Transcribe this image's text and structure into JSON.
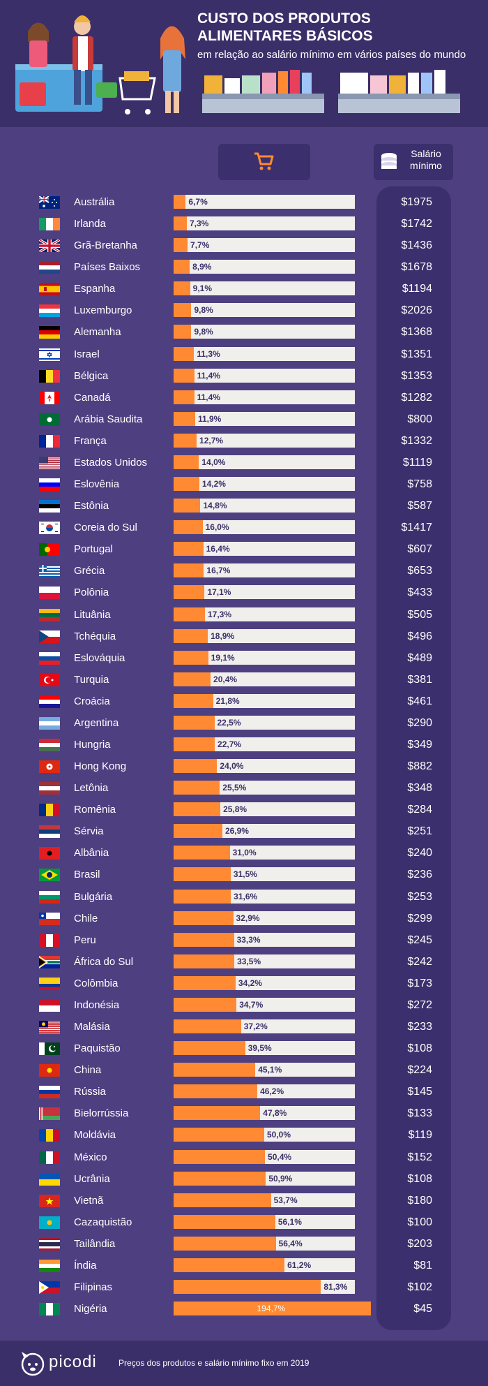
{
  "header": {
    "title": "CUSTO DOS PRODUTOS ALIMENTARES BÁSICOS",
    "subtitle": "em relação ao salário mínimo em vários países do mundo"
  },
  "salary_column_label": "Salário mínimo",
  "icons": {
    "cart": "cart-icon",
    "coins": "coins-icon",
    "logo": "dog-logo-icon"
  },
  "colors": {
    "bar": "#ff8a33",
    "bar_background": "#f1efec",
    "background": "#4e3f80",
    "header": "#3b2f69"
  },
  "chart_data": {
    "type": "bar",
    "orientation": "horizontal",
    "categories": [
      "Austrália",
      "Irlanda",
      "Grã-Bretanha",
      "Países Baixos",
      "Espanha",
      "Luxemburgo",
      "Alemanha",
      "Israel",
      "Bélgica",
      "Canadá",
      "Arábia Saudita",
      "França",
      "Estados Unidos",
      "Eslovênia",
      "Estônia",
      "Coreia do Sul",
      "Portugal",
      "Grécia",
      "Polônia",
      "Lituânia",
      "Tchéquia",
      "Eslováquia",
      "Turquia",
      "Croácia",
      "Argentina",
      "Hungria",
      "Hong Kong",
      "Letônia",
      "Romênia",
      "Sérvia",
      "Albânia",
      "Brasil",
      "Bulgária",
      "Chile",
      "Peru",
      "África do Sul",
      "Colômbia",
      "Indonésia",
      "Malásia",
      "Paquistão",
      "China",
      "Rússia",
      "Bielorrússia",
      "Moldávia",
      "México",
      "Ucrânia",
      "Vietnã",
      "Cazaquistão",
      "Tailândia",
      "Índia",
      "Filipinas",
      "Nigéria"
    ],
    "values": [
      6.7,
      7.3,
      7.7,
      8.9,
      9.1,
      9.8,
      9.8,
      11.3,
      11.4,
      11.4,
      11.9,
      12.7,
      14.0,
      14.2,
      14.8,
      16.0,
      16.4,
      16.7,
      17.1,
      17.3,
      18.9,
      19.1,
      20.4,
      21.8,
      22.5,
      22.7,
      24.0,
      25.5,
      25.8,
      26.9,
      31.0,
      31.5,
      31.6,
      32.9,
      33.3,
      33.5,
      34.2,
      34.7,
      37.2,
      39.5,
      45.1,
      46.2,
      47.8,
      50.0,
      50.4,
      50.9,
      53.7,
      56.1,
      56.4,
      61.2,
      81.3,
      194.7
    ],
    "value_labels": [
      "6,7%",
      "7,3%",
      "7,7%",
      "8,9%",
      "9,1%",
      "9,8%",
      "9,8%",
      "11,3%",
      "11,4%",
      "11,4%",
      "11,9%",
      "12,7%",
      "14,0%",
      "14,2%",
      "14,8%",
      "16,0%",
      "16,4%",
      "16,7%",
      "17,1%",
      "17,3%",
      "18,9%",
      "19,1%",
      "20,4%",
      "21,8%",
      "22,5%",
      "22,7%",
      "24,0%",
      "25,5%",
      "25,8%",
      "26,9%",
      "31,0%",
      "31,5%",
      "31,6%",
      "32,9%",
      "33,3%",
      "33,5%",
      "34,2%",
      "34,7%",
      "37,2%",
      "39,5%",
      "45,1%",
      "46,2%",
      "47,8%",
      "50,0%",
      "50,4%",
      "50,9%",
      "53,7%",
      "56,1%",
      "56,4%",
      "61,2%",
      "81,3%",
      "194,7%"
    ],
    "minimum_wage": [
      "$1975",
      "$1742",
      "$1436",
      "$1678",
      "$1194",
      "$2026",
      "$1368",
      "$1351",
      "$1353",
      "$1282",
      "$800",
      "$1332",
      "$1119",
      "$758",
      "$587",
      "$1417",
      "$607",
      "$653",
      "$433",
      "$505",
      "$496",
      "$489",
      "$381",
      "$461",
      "$290",
      "$349",
      "$882",
      "$348",
      "$284",
      "$251",
      "$240",
      "$236",
      "$253",
      "$299",
      "$245",
      "$242",
      "$173",
      "$272",
      "$233",
      "$108",
      "$224",
      "$145",
      "$133",
      "$119",
      "$152",
      "$108",
      "$180",
      "$100",
      "$203",
      "$81",
      "$102",
      "$45"
    ],
    "xlim": [
      0,
      100
    ],
    "grid": false
  },
  "flags": [
    {
      "type": "au",
      "c": [
        "#00247d",
        "#ffffff",
        "#cf142b"
      ]
    },
    {
      "type": "v",
      "c": [
        "#169b62",
        "#ffffff",
        "#ff883e"
      ]
    },
    {
      "type": "gb",
      "c": [
        "#012169",
        "#ffffff",
        "#c8102e"
      ]
    },
    {
      "type": "h",
      "c": [
        "#ae1c28",
        "#ffffff",
        "#21468b"
      ]
    },
    {
      "type": "es",
      "c": [
        "#c60b1e",
        "#ffc400",
        "#c60b1e"
      ]
    },
    {
      "type": "h",
      "c": [
        "#ef3340",
        "#ffffff",
        "#00a3e0"
      ]
    },
    {
      "type": "h",
      "c": [
        "#000000",
        "#dd0000",
        "#ffce00"
      ]
    },
    {
      "type": "il",
      "c": [
        "#ffffff",
        "#0038b8",
        "#ffffff"
      ]
    },
    {
      "type": "v",
      "c": [
        "#000000",
        "#fdda24",
        "#ef3340"
      ]
    },
    {
      "type": "ca",
      "c": [
        "#ff0000",
        "#ffffff",
        "#ff0000"
      ]
    },
    {
      "type": "s",
      "c": [
        "#006c35",
        "#ffffff",
        "#006c35"
      ]
    },
    {
      "type": "v",
      "c": [
        "#002395",
        "#ffffff",
        "#ed2939"
      ]
    },
    {
      "type": "us",
      "c": [
        "#b22234",
        "#ffffff",
        "#3c3b6e"
      ]
    },
    {
      "type": "h",
      "c": [
        "#ffffff",
        "#0000ff",
        "#ff0000"
      ]
    },
    {
      "type": "h",
      "c": [
        "#0072ce",
        "#000000",
        "#ffffff"
      ]
    },
    {
      "type": "kr",
      "c": [
        "#ffffff",
        "#cd2e3a",
        "#0047a0"
      ]
    },
    {
      "type": "pt",
      "c": [
        "#006600",
        "#ff0000",
        "#ffcc00"
      ]
    },
    {
      "type": "gr",
      "c": [
        "#0d5eaf",
        "#ffffff",
        "#0d5eaf"
      ]
    },
    {
      "type": "h2",
      "c": [
        "#ffffff",
        "#dc143c"
      ]
    },
    {
      "type": "h",
      "c": [
        "#fdb913",
        "#006a44",
        "#c1272d"
      ]
    },
    {
      "type": "cz",
      "c": [
        "#ffffff",
        "#d7141a",
        "#11457e"
      ]
    },
    {
      "type": "h",
      "c": [
        "#ffffff",
        "#0b4ea2",
        "#ee1c25"
      ]
    },
    {
      "type": "tr",
      "c": [
        "#e30a17",
        "#ffffff",
        "#e30a17"
      ]
    },
    {
      "type": "h",
      "c": [
        "#ff0000",
        "#ffffff",
        "#171796"
      ]
    },
    {
      "type": "h",
      "c": [
        "#74acdf",
        "#ffffff",
        "#74acdf"
      ]
    },
    {
      "type": "h",
      "c": [
        "#ce2939",
        "#ffffff",
        "#477050"
      ]
    },
    {
      "type": "hk",
      "c": [
        "#de2910",
        "#ffffff",
        "#de2910"
      ]
    },
    {
      "type": "h",
      "c": [
        "#9e3039",
        "#ffffff",
        "#9e3039"
      ]
    },
    {
      "type": "v",
      "c": [
        "#002b7f",
        "#fcd116",
        "#ce1126"
      ]
    },
    {
      "type": "h",
      "c": [
        "#c6363c",
        "#0c4076",
        "#ffffff"
      ]
    },
    {
      "type": "s",
      "c": [
        "#e41e20",
        "#000000",
        "#e41e20"
      ]
    },
    {
      "type": "br",
      "c": [
        "#009c3b",
        "#ffdf00",
        "#002776"
      ]
    },
    {
      "type": "h",
      "c": [
        "#ffffff",
        "#00966e",
        "#d62612"
      ]
    },
    {
      "type": "cl",
      "c": [
        "#ffffff",
        "#d52b1e",
        "#0039a6"
      ]
    },
    {
      "type": "v",
      "c": [
        "#d91023",
        "#ffffff",
        "#d91023"
      ]
    },
    {
      "type": "za",
      "c": [
        "#007a4d",
        "#ffb612",
        "#de3831"
      ]
    },
    {
      "type": "co",
      "c": [
        "#fcd116",
        "#003893",
        "#ce1126"
      ]
    },
    {
      "type": "h2",
      "c": [
        "#ce1126",
        "#ffffff"
      ]
    },
    {
      "type": "us",
      "c": [
        "#cc0001",
        "#ffffff",
        "#010066"
      ]
    },
    {
      "type": "pk",
      "c": [
        "#01411c",
        "#ffffff",
        "#01411c"
      ]
    },
    {
      "type": "s",
      "c": [
        "#de2910",
        "#ffde00",
        "#de2910"
      ]
    },
    {
      "type": "h",
      "c": [
        "#ffffff",
        "#0039a6",
        "#d52b1e"
      ]
    },
    {
      "type": "by",
      "c": [
        "#c8313e",
        "#4aa657",
        "#ffffff"
      ]
    },
    {
      "type": "v",
      "c": [
        "#0046ae",
        "#ffd200",
        "#cc092f"
      ]
    },
    {
      "type": "v",
      "c": [
        "#006847",
        "#ffffff",
        "#ce1126"
      ]
    },
    {
      "type": "h2",
      "c": [
        "#0057b7",
        "#ffd700"
      ]
    },
    {
      "type": "vn",
      "c": [
        "#da251d",
        "#ffff00",
        "#da251d"
      ]
    },
    {
      "type": "s",
      "c": [
        "#00afca",
        "#fec50c",
        "#00afca"
      ]
    },
    {
      "type": "th",
      "c": [
        "#a51931",
        "#ffffff",
        "#2d2a4a"
      ]
    },
    {
      "type": "h",
      "c": [
        "#ff9933",
        "#ffffff",
        "#138808"
      ]
    },
    {
      "type": "ph",
      "c": [
        "#0038a8",
        "#ce1126",
        "#ffffff"
      ]
    },
    {
      "type": "v",
      "c": [
        "#008751",
        "#ffffff",
        "#008751"
      ]
    }
  ],
  "footer": {
    "logo": "picodi",
    "note": "Preços dos produtos e salário mínimo fixo em 2019"
  }
}
